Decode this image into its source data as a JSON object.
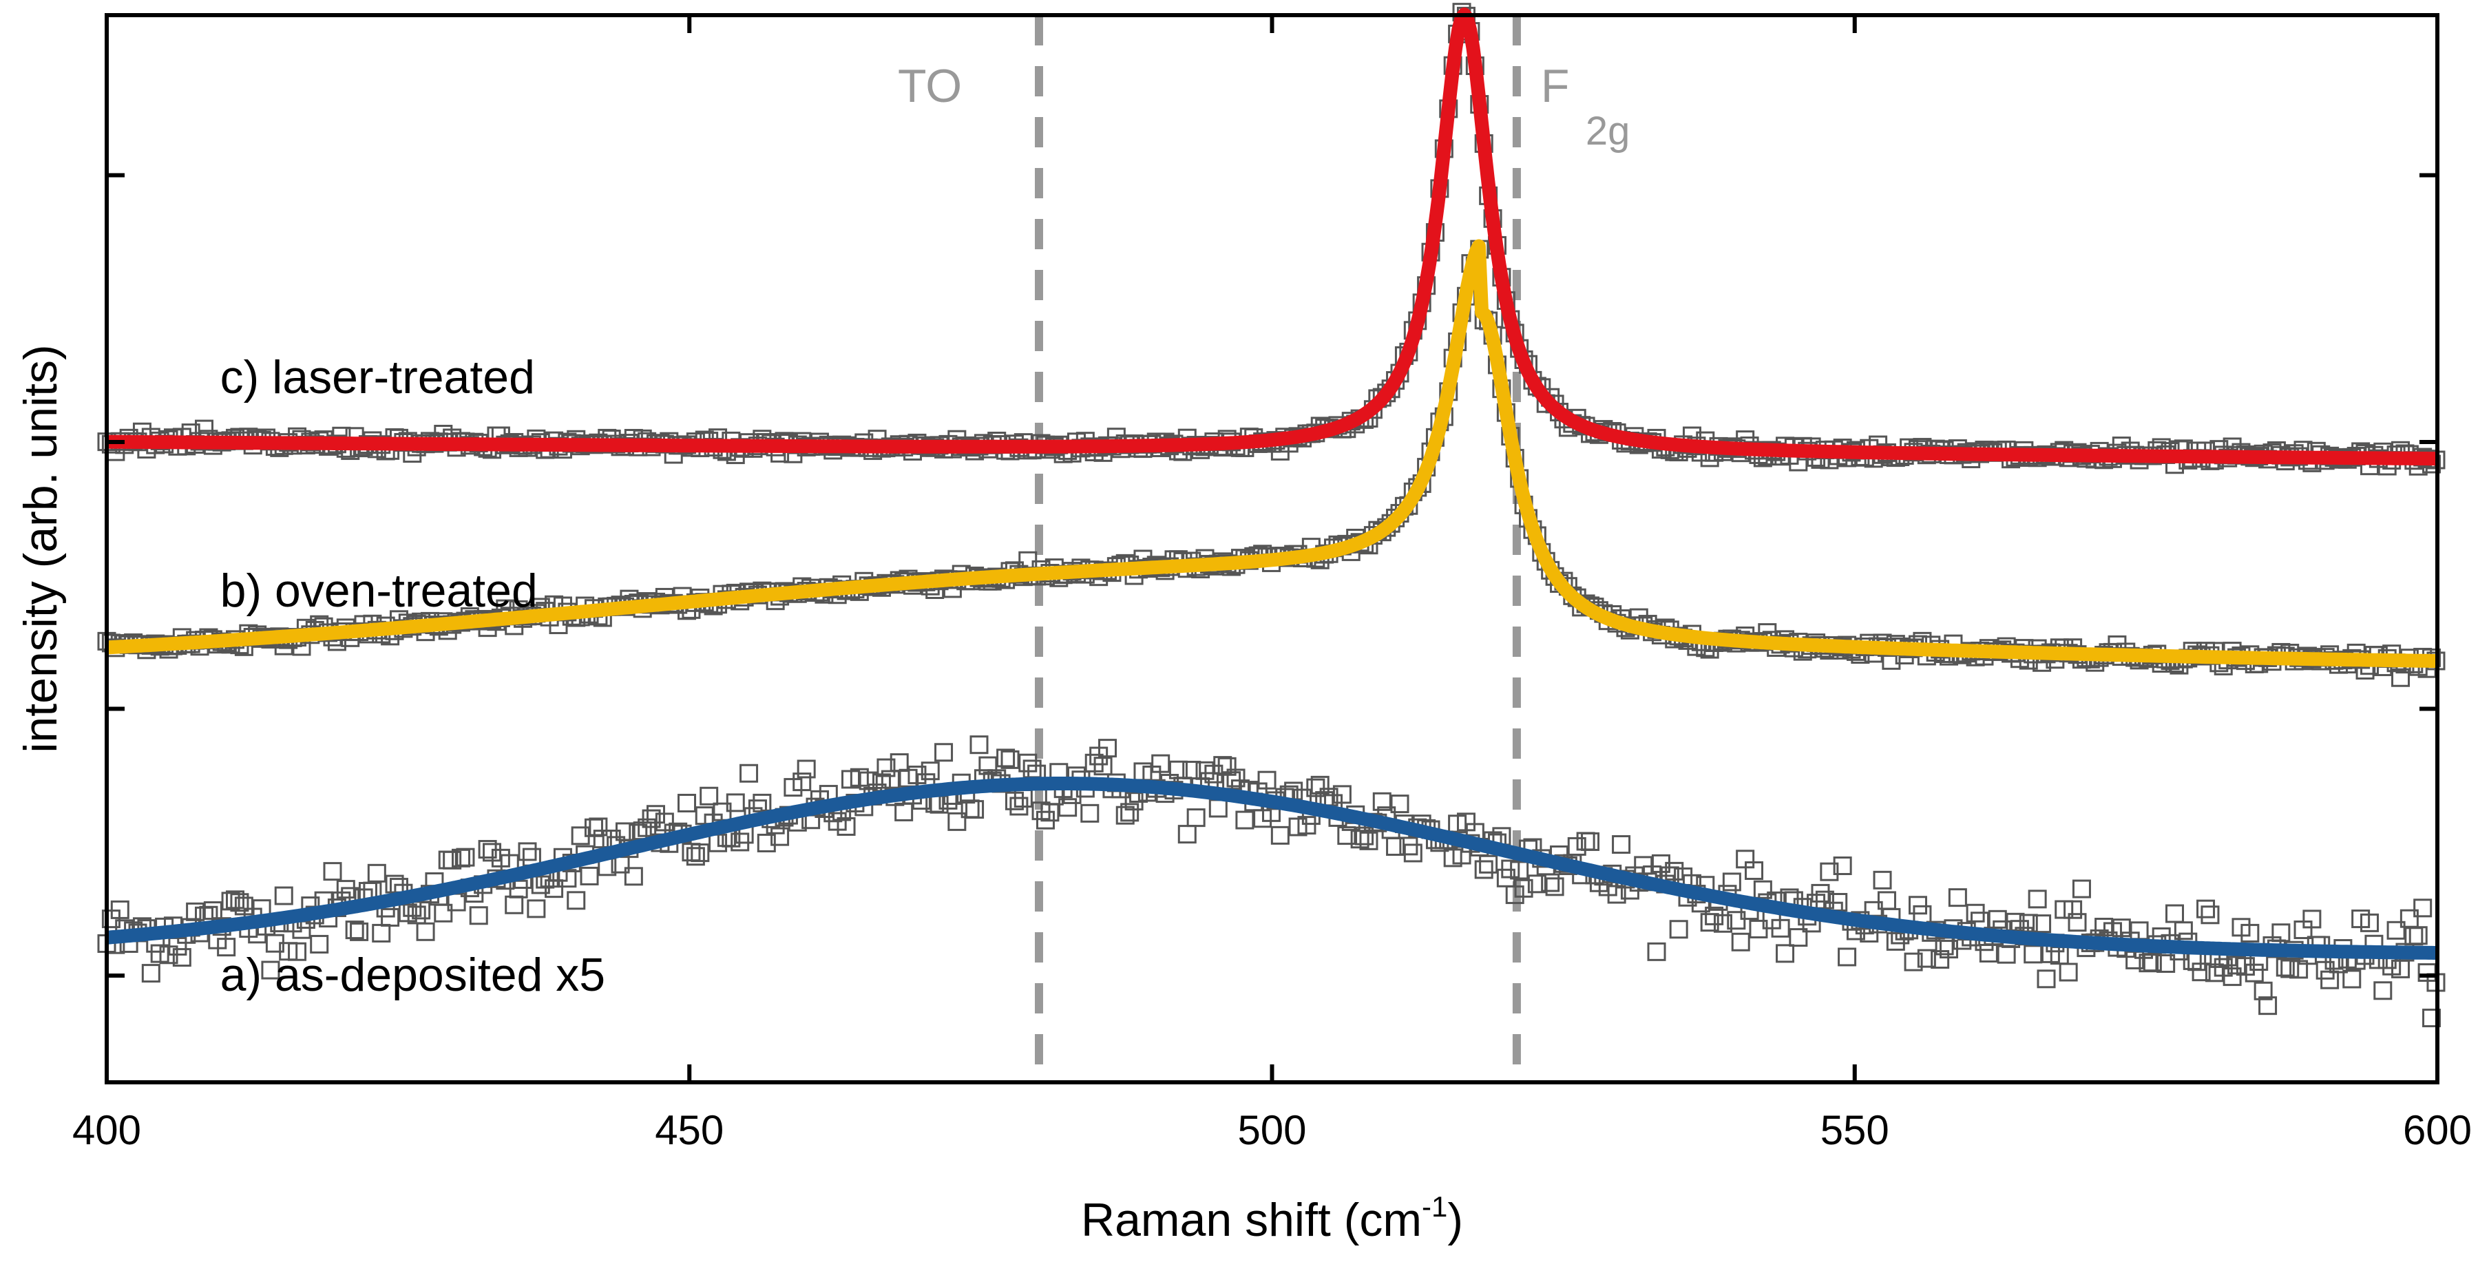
{
  "chart_data": {
    "type": "line",
    "title": "",
    "xlabel": "Raman shift (cm",
    "xlabel_sup": "-1",
    "xlabel_end": ")",
    "ylabel": "intensity (arb. units)",
    "xlim": [
      400,
      600
    ],
    "ylim": [
      0,
      10
    ],
    "xticks": [
      400,
      450,
      500,
      550,
      600
    ],
    "xtick_labels": [
      "400",
      "450",
      "500",
      "550",
      "600"
    ],
    "yticks": [
      1,
      3.5,
      6,
      8.5
    ],
    "reference_lines": [
      {
        "x": 480,
        "label": "TO",
        "sub": ""
      },
      {
        "x": 521,
        "label": "F",
        "sub": "2g"
      }
    ],
    "series": [
      {
        "name": "a) as-deposited x5",
        "color": "#1c5a99",
        "model": {
          "baseline": 1.2,
          "amp": 1.6,
          "center": 482,
          "width": 38,
          "slope": 0.0
        },
        "label_at": [
          405,
          1.0
        ]
      },
      {
        "name": "b) oven-treated",
        "color": "#f2b705",
        "model": {
          "baseline": 3.9,
          "amp": 3.1,
          "center": 518,
          "width": 3.2,
          "slope": 0.0,
          "shoulder_amp": 0.9,
          "shoulder_center": 500,
          "shoulder_width": 55
        },
        "label_at": [
          405,
          4.6
        ]
      },
      {
        "name": "c) laser-treated",
        "color": "#e3121b",
        "model": {
          "baseline": 6.0,
          "amp": 4.1,
          "center": 516.5,
          "width": 2.6,
          "slope": -0.0008
        },
        "label_at": [
          405,
          6.6
        ]
      }
    ]
  }
}
